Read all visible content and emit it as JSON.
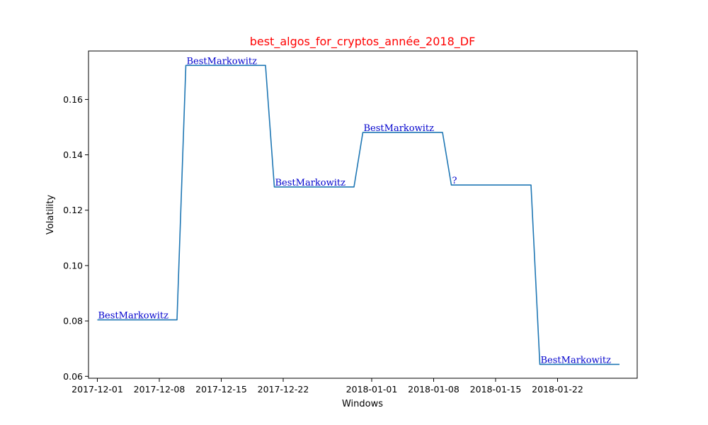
{
  "chart_data": {
    "type": "line",
    "title": "best_algos_for_cryptos_année_2018_DF",
    "xlabel": "Windows",
    "ylabel": "Volatility",
    "ylim": [
      0.0593,
      0.1775
    ],
    "xlim": [
      "2017-11-30",
      "2018-01-31"
    ],
    "grid": false,
    "title_color": "#ff0000",
    "line_color": "#1f77b4",
    "annotation_color": "#0000cd",
    "x_ticks": [
      "2017-12-01",
      "2017-12-08",
      "2017-12-15",
      "2017-12-22",
      "2018-01-01",
      "2018-01-08",
      "2018-01-15",
      "2018-01-22"
    ],
    "y_ticks": [
      "0.06",
      "0.08",
      "0.10",
      "0.12",
      "0.14",
      "0.16"
    ],
    "series": [
      {
        "x": [
          "2017-12-01",
          "2017-12-10",
          "2017-12-11",
          "2017-12-20",
          "2017-12-21",
          "2017-12-30",
          "2017-12-31",
          "2018-01-09",
          "2018-01-10",
          "2018-01-19",
          "2018-01-20",
          "2018-01-29"
        ],
        "y": [
          0.0804,
          0.0804,
          0.1723,
          0.1723,
          0.1284,
          0.1284,
          0.1481,
          0.1481,
          0.1291,
          0.1291,
          0.0643,
          0.0643
        ]
      }
    ],
    "annotations": [
      {
        "text": "BestMarkowitz",
        "x": "2017-12-01",
        "y": 0.0804
      },
      {
        "text": "BestMarkowitz",
        "x": "2017-12-11",
        "y": 0.1723
      },
      {
        "text": "BestMarkowitz",
        "x": "2017-12-21",
        "y": 0.1284
      },
      {
        "text": "BestMarkowitz",
        "x": "2017-12-31",
        "y": 0.1481
      },
      {
        "text": "?",
        "x": "2018-01-10",
        "y": 0.1291
      },
      {
        "text": "BestMarkowitz",
        "x": "2018-01-20",
        "y": 0.0643
      }
    ]
  }
}
